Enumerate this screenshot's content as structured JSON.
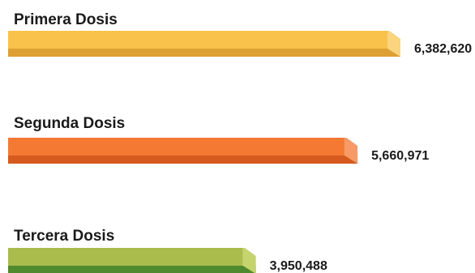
{
  "chart_data": {
    "type": "bar",
    "orientation": "horizontal",
    "categories": [
      "Primera Dosis",
      "Segunda Dosis",
      "Tercera Dosis"
    ],
    "values": [
      6382620,
      5660971,
      3950488
    ],
    "value_labels": [
      "6,382,620",
      "5,660,971",
      "3,950,488"
    ],
    "title": "",
    "xlabel": "",
    "ylabel": "",
    "grid": false,
    "colors": [
      {
        "top": "#F9C24B",
        "bottom": "#DDA033",
        "side": "#FBD47E"
      },
      {
        "top": "#F47A34",
        "bottom": "#D55A1E",
        "side": "#F79A66"
      },
      {
        "top": "#A9BC4C",
        "bottom": "#4F8A2E",
        "side": "#C6D46E"
      }
    ]
  }
}
